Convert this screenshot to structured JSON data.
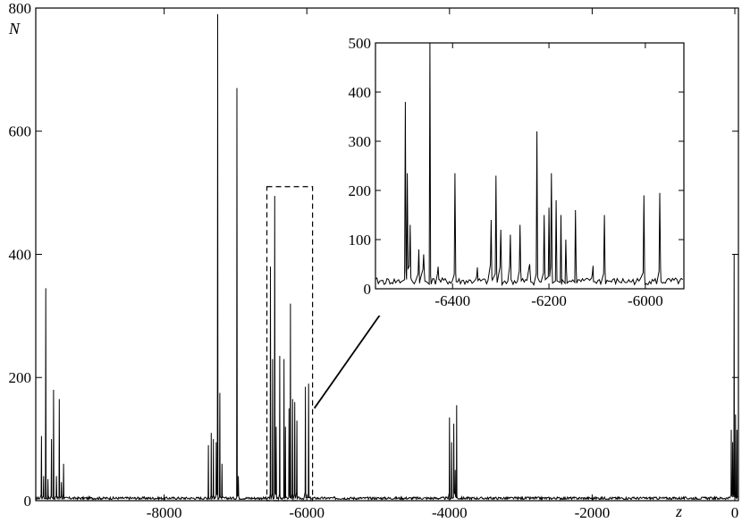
{
  "chart_data": [
    {
      "type": "line",
      "panel": "main",
      "title": "",
      "xlabel": "z",
      "ylabel": "N",
      "xlim": [
        -9800,
        50
      ],
      "ylim": [
        0,
        800
      ],
      "x_ticks": [
        -8000,
        -6000,
        -4000,
        -2000,
        0
      ],
      "x_tick_labels": [
        "-8000",
        "-6000",
        "-4000",
        "-2000",
        "0"
      ],
      "y_ticks": [
        0,
        200,
        400,
        600,
        800
      ],
      "y_tick_labels": [
        "0",
        "200",
        "400",
        "600",
        "800"
      ],
      "grid": false,
      "baseline": 2,
      "series": [
        {
          "color": "#000000",
          "peaks": [
            [
              -9720,
              105
            ],
            [
              -9690,
              40
            ],
            [
              -9660,
              345
            ],
            [
              -9630,
              35
            ],
            [
              -9580,
              100
            ],
            [
              -9550,
              180
            ],
            [
              -9510,
              40
            ],
            [
              -9470,
              165
            ],
            [
              -9440,
              30
            ],
            [
              -9410,
              60
            ],
            [
              -7380,
              90
            ],
            [
              -7340,
              110
            ],
            [
              -7310,
              100
            ],
            [
              -7270,
              95
            ],
            [
              -7250,
              790
            ],
            [
              -7220,
              175
            ],
            [
              -7190,
              60
            ],
            [
              -6980,
              670
            ],
            [
              -6960,
              40
            ],
            [
              -6510,
              380
            ],
            [
              -6480,
              230
            ],
            [
              -6450,
              495
            ],
            [
              -6430,
              120
            ],
            [
              -6380,
              235
            ],
            [
              -6320,
              230
            ],
            [
              -6300,
              120
            ],
            [
              -6250,
              150
            ],
            [
              -6230,
              320
            ],
            [
              -6200,
              165
            ],
            [
              -6170,
              160
            ],
            [
              -6140,
              130
            ],
            [
              -6020,
              185
            ],
            [
              -5975,
              190
            ],
            [
              -4000,
              135
            ],
            [
              -3970,
              95
            ],
            [
              -3940,
              125
            ],
            [
              -3920,
              50
            ],
            [
              -3900,
              155
            ],
            [
              -50,
              115
            ],
            [
              -30,
              95
            ],
            [
              -10,
              400
            ],
            [
              10,
              140
            ],
            [
              30,
              115
            ]
          ]
        }
      ]
    },
    {
      "type": "line",
      "panel": "inset",
      "title": "",
      "xlim": [
        -6560,
        -5920
      ],
      "ylim": [
        0,
        500
      ],
      "x_ticks": [
        -6400,
        -6200,
        -6000
      ],
      "x_tick_labels": [
        "-6400",
        "-6200",
        "-6000"
      ],
      "y_ticks": [
        0,
        100,
        200,
        300,
        400,
        500
      ],
      "y_tick_labels": [
        "0",
        "100",
        "200",
        "300",
        "400",
        "500"
      ],
      "grid": false,
      "series": [
        {
          "color": "#000000",
          "peaks": [
            [
              -6498,
              380
            ],
            [
              -6494,
              235
            ],
            [
              -6488,
              130
            ],
            [
              -6470,
              80
            ],
            [
              -6460,
              70
            ],
            [
              -6447,
              500
            ],
            [
              -6430,
              45
            ],
            [
              -6395,
              235
            ],
            [
              -6350,
              25
            ],
            [
              -6320,
              140
            ],
            [
              -6310,
              230
            ],
            [
              -6300,
              120
            ],
            [
              -6280,
              110
            ],
            [
              -6260,
              130
            ],
            [
              -6240,
              50
            ],
            [
              -6225,
              320
            ],
            [
              -6210,
              150
            ],
            [
              -6200,
              165
            ],
            [
              -6195,
              235
            ],
            [
              -6185,
              180
            ],
            [
              -6175,
              150
            ],
            [
              -6165,
              100
            ],
            [
              -6145,
              160
            ],
            [
              -6110,
              30
            ],
            [
              -6085,
              150
            ],
            [
              -6003,
              190
            ],
            [
              -5970,
              195
            ]
          ]
        }
      ]
    },
    {
      "type": "annotation",
      "zoom_box_x": [
        -6560,
        -5920
      ],
      "zoom_box_y": [
        0,
        510
      ],
      "note": "dashed box on main panel magnified in inset, indicated by arrow"
    }
  ]
}
